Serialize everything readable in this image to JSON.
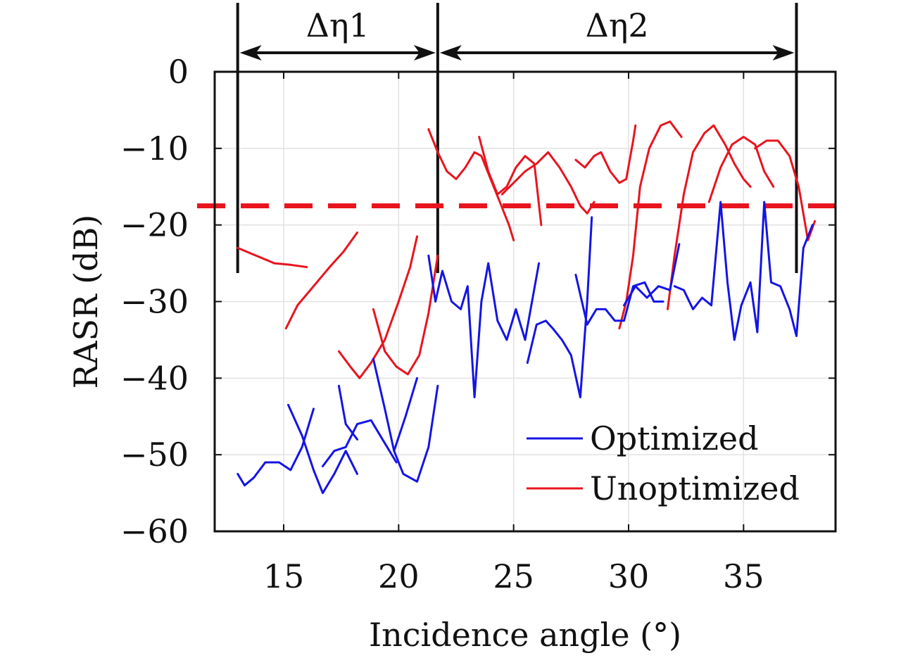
{
  "chart_data": {
    "type": "line",
    "xlabel": "Incidence angle (°)",
    "ylabel": "RASR (dB)",
    "xlim": [
      12.0,
      39.0
    ],
    "ylim": [
      -60,
      0
    ],
    "xticks": [
      15,
      20,
      25,
      30,
      35
    ],
    "yticks": [
      0,
      -10,
      -20,
      -30,
      -40,
      -50,
      -60
    ],
    "grid": true,
    "legend_position": "bottom-right",
    "threshold": {
      "y": -17.5,
      "style": "dashed",
      "color": "#e8141e"
    },
    "spans": [
      {
        "label": "Δη1",
        "x_start": 13.0,
        "x_end": 21.7
      },
      {
        "label": "Δη2",
        "x_start": 21.7,
        "x_end": 37.3
      }
    ],
    "series": [
      {
        "name": "Optimized",
        "color": "#1414e6",
        "segments": [
          [
            [
              13.0,
              -52.5
            ],
            [
              13.3,
              -54.0
            ],
            [
              13.7,
              -53.0
            ],
            [
              14.2,
              -51.0
            ],
            [
              14.8,
              -51.0
            ],
            [
              15.3,
              -52.0
            ],
            [
              15.8,
              -49.0
            ],
            [
              16.3,
              -44.0
            ]
          ],
          [
            [
              15.2,
              -43.5
            ],
            [
              15.8,
              -47.5
            ],
            [
              16.3,
              -52.0
            ],
            [
              16.7,
              -55.0
            ],
            [
              17.2,
              -52.5
            ],
            [
              17.7,
              -49.5
            ],
            [
              18.2,
              -52.5
            ]
          ],
          [
            [
              16.7,
              -51.5
            ],
            [
              17.2,
              -49.5
            ],
            [
              17.7,
              -49.0
            ],
            [
              18.2,
              -46.0
            ],
            [
              18.8,
              -45.5
            ],
            [
              19.4,
              -48.5
            ],
            [
              19.9,
              -51.0
            ]
          ],
          [
            [
              17.4,
              -41.0
            ],
            [
              17.7,
              -46.0
            ],
            [
              18.2,
              -48.0
            ]
          ],
          [
            [
              18.9,
              -37.5
            ],
            [
              19.4,
              -44.0
            ],
            [
              19.8,
              -49.5
            ],
            [
              20.2,
              -52.5
            ],
            [
              20.8,
              -53.5
            ],
            [
              21.3,
              -49.0
            ],
            [
              21.7,
              -41.0
            ]
          ],
          [
            [
              19.8,
              -49.5
            ],
            [
              20.3,
              -45.0
            ],
            [
              20.8,
              -40.0
            ]
          ],
          [
            [
              21.3,
              -24.0
            ],
            [
              21.6,
              -30.0
            ],
            [
              21.9,
              -26.0
            ],
            [
              22.3,
              -30.0
            ],
            [
              22.7,
              -31.0
            ],
            [
              23.0,
              -28.0
            ],
            [
              23.3,
              -42.5
            ],
            [
              23.6,
              -30.0
            ],
            [
              23.9,
              -25.0
            ],
            [
              24.3,
              -32.5
            ],
            [
              24.7,
              -35.0
            ],
            [
              25.1,
              -31.0
            ],
            [
              25.5,
              -35.0
            ],
            [
              25.8,
              -30.0
            ],
            [
              26.1,
              -25.0
            ]
          ],
          [
            [
              25.6,
              -38.0
            ],
            [
              26.0,
              -33.0
            ],
            [
              26.4,
              -32.5
            ],
            [
              26.7,
              -33.5
            ],
            [
              27.1,
              -35.0
            ],
            [
              27.5,
              -37.0
            ],
            [
              27.9,
              -42.5
            ],
            [
              28.2,
              -30.0
            ],
            [
              28.4,
              -19.0
            ]
          ],
          [
            [
              27.7,
              -26.5
            ],
            [
              28.2,
              -33.0
            ],
            [
              28.6,
              -31.0
            ],
            [
              29.0,
              -31.0
            ],
            [
              29.4,
              -32.5
            ],
            [
              29.8,
              -32.5
            ],
            [
              30.2,
              -28.0
            ],
            [
              30.7,
              -27.5
            ],
            [
              31.1,
              -30.0
            ],
            [
              31.5,
              -30.0
            ]
          ],
          [
            [
              29.8,
              -30.5
            ],
            [
              30.3,
              -28.0
            ],
            [
              30.8,
              -29.5
            ],
            [
              31.3,
              -28.0
            ],
            [
              31.8,
              -28.5
            ],
            [
              32.2,
              -22.5
            ]
          ],
          [
            [
              32.0,
              -28.0
            ],
            [
              32.4,
              -28.5
            ],
            [
              32.8,
              -31.0
            ],
            [
              33.2,
              -29.5
            ],
            [
              33.6,
              -30.5
            ],
            [
              34.0,
              -17.0
            ],
            [
              34.3,
              -27.5
            ],
            [
              34.6,
              -35.0
            ],
            [
              34.9,
              -30.5
            ],
            [
              35.3,
              -27.5
            ],
            [
              35.6,
              -34.0
            ],
            [
              35.9,
              -17.0
            ],
            [
              36.2,
              -27.5
            ],
            [
              36.6,
              -28.0
            ],
            [
              37.0,
              -31.0
            ],
            [
              37.3,
              -34.5
            ],
            [
              37.6,
              -23.0
            ],
            [
              38.0,
              -20.0
            ]
          ]
        ]
      },
      {
        "name": "Unoptimized",
        "color": "#e8141e",
        "segments": [
          [
            [
              13.0,
              -23.0
            ],
            [
              13.8,
              -24.0
            ],
            [
              14.6,
              -25.0
            ],
            [
              15.3,
              -25.2
            ],
            [
              16.0,
              -25.5
            ]
          ],
          [
            [
              15.1,
              -33.5
            ],
            [
              15.6,
              -30.5
            ],
            [
              16.3,
              -28.0
            ],
            [
              17.0,
              -25.5
            ],
            [
              17.6,
              -23.5
            ],
            [
              18.2,
              -21.0
            ]
          ],
          [
            [
              17.4,
              -36.5
            ],
            [
              17.9,
              -38.5
            ],
            [
              18.3,
              -40.0
            ],
            [
              18.8,
              -38.0
            ],
            [
              19.4,
              -35.0
            ],
            [
              20.0,
              -30.0
            ],
            [
              20.5,
              -25.5
            ],
            [
              20.8,
              -21.5
            ]
          ],
          [
            [
              18.9,
              -31.0
            ],
            [
              19.4,
              -36.5
            ],
            [
              19.9,
              -38.5
            ],
            [
              20.4,
              -39.5
            ],
            [
              20.9,
              -37.0
            ],
            [
              21.3,
              -31.5
            ],
            [
              21.7,
              -24.0
            ]
          ],
          [
            [
              21.3,
              -7.5
            ],
            [
              21.7,
              -10.5
            ],
            [
              22.1,
              -13.0
            ],
            [
              22.5,
              -14.0
            ],
            [
              22.9,
              -12.5
            ],
            [
              23.3,
              -10.5
            ],
            [
              23.6,
              -11.0
            ],
            [
              24.0,
              -14.0
            ],
            [
              24.4,
              -17.0
            ],
            [
              24.8,
              -20.0
            ],
            [
              25.0,
              -22.0
            ]
          ],
          [
            [
              23.5,
              -8.5
            ],
            [
              23.9,
              -13.0
            ],
            [
              24.3,
              -16.0
            ],
            [
              24.7,
              -15.0
            ],
            [
              25.1,
              -12.5
            ],
            [
              25.5,
              -11.0
            ],
            [
              25.9,
              -12.0
            ],
            [
              26.2,
              -20.0
            ]
          ],
          [
            [
              24.5,
              -16.0
            ],
            [
              25.0,
              -14.5
            ],
            [
              25.5,
              -13.0
            ],
            [
              26.0,
              -12.0
            ],
            [
              26.5,
              -10.5
            ],
            [
              27.0,
              -12.5
            ],
            [
              27.5,
              -15.0
            ],
            [
              27.9,
              -17.5
            ],
            [
              28.2,
              -18.5
            ],
            [
              28.5,
              -17.0
            ]
          ],
          [
            [
              27.7,
              -11.5
            ],
            [
              28.1,
              -12.5
            ],
            [
              28.5,
              -11.0
            ],
            [
              28.8,
              -10.5
            ],
            [
              29.2,
              -13.0
            ],
            [
              29.6,
              -14.5
            ],
            [
              29.9,
              -14.0
            ],
            [
              30.2,
              -9.0
            ],
            [
              30.3,
              -7.0
            ]
          ],
          [
            [
              29.6,
              -33.5
            ],
            [
              29.9,
              -30.0
            ],
            [
              30.2,
              -24.0
            ],
            [
              30.5,
              -15.0
            ],
            [
              30.9,
              -10.0
            ],
            [
              31.4,
              -7.0
            ],
            [
              31.8,
              -6.5
            ],
            [
              32.3,
              -8.5
            ]
          ],
          [
            [
              31.7,
              -31.0
            ],
            [
              32.0,
              -24.0
            ],
            [
              32.4,
              -16.0
            ],
            [
              32.8,
              -10.5
            ],
            [
              33.3,
              -8.0
            ],
            [
              33.7,
              -7.0
            ],
            [
              34.2,
              -9.5
            ],
            [
              34.6,
              -12.0
            ],
            [
              35.0,
              -14.0
            ],
            [
              35.3,
              -15.0
            ]
          ],
          [
            [
              33.5,
              -17.0
            ],
            [
              34.0,
              -12.5
            ],
            [
              34.5,
              -9.5
            ],
            [
              35.0,
              -8.5
            ],
            [
              35.5,
              -9.5
            ],
            [
              35.9,
              -13.0
            ],
            [
              36.3,
              -15.0
            ]
          ],
          [
            [
              35.5,
              -10.0
            ],
            [
              36.0,
              -9.0
            ],
            [
              36.5,
              -9.0
            ],
            [
              37.0,
              -11.0
            ],
            [
              37.4,
              -15.0
            ],
            [
              37.8,
              -22.0
            ],
            [
              38.1,
              -19.5
            ]
          ]
        ]
      }
    ]
  }
}
